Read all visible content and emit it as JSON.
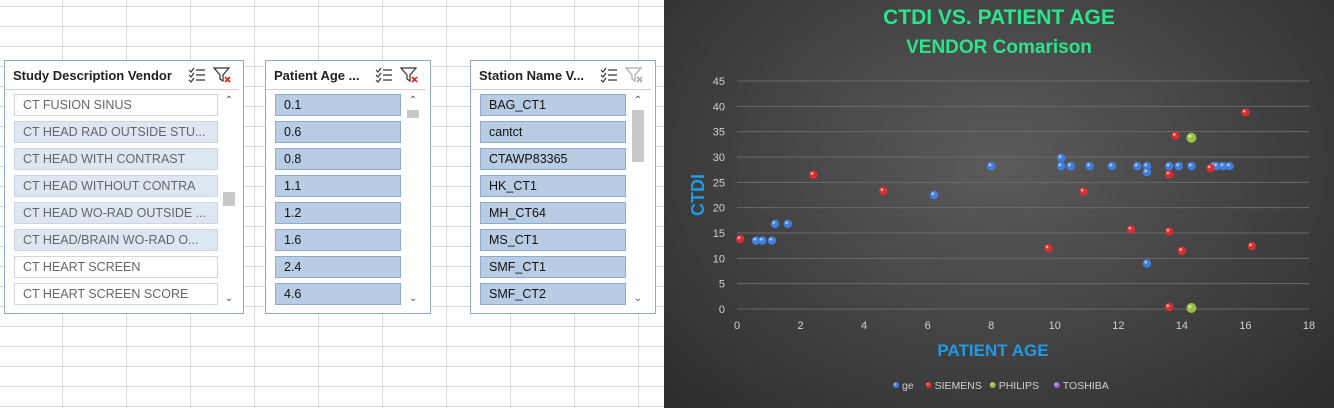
{
  "slicers": [
    {
      "title": "Study Description Vendor",
      "items": [
        {
          "label": "CT FUSION SINUS",
          "state": "normal"
        },
        {
          "label": "CT HEAD RAD OUTSIDE STU...",
          "state": "soft"
        },
        {
          "label": "CT HEAD WITH CONTRAST",
          "state": "soft"
        },
        {
          "label": "CT HEAD WITHOUT CONTRA",
          "state": "soft"
        },
        {
          "label": "CT HEAD WO-RAD OUTSIDE ...",
          "state": "soft"
        },
        {
          "label": "CT HEAD/BRAIN WO-RAD O...",
          "state": "soft"
        },
        {
          "label": "CT HEART SCREEN",
          "state": "normal"
        },
        {
          "label": "CT HEART SCREEN SCORE",
          "state": "normal"
        }
      ],
      "icons": [
        "multi-select-icon",
        "clear-filter-icon"
      ],
      "scroll_position": 0.6
    },
    {
      "title": "Patient Age ...",
      "items": [
        {
          "label": "0.1",
          "state": "sel"
        },
        {
          "label": "0.6",
          "state": "sel"
        },
        {
          "label": "0.8",
          "state": "sel"
        },
        {
          "label": "1.1",
          "state": "sel"
        },
        {
          "label": "1.2",
          "state": "sel"
        },
        {
          "label": "1.6",
          "state": "sel"
        },
        {
          "label": "2.4",
          "state": "sel"
        },
        {
          "label": "4.6",
          "state": "sel"
        }
      ],
      "icons": [
        "multi-select-icon",
        "clear-filter-icon"
      ],
      "scroll_position": 0.0
    },
    {
      "title": "Station Name V...",
      "items": [
        {
          "label": "BAG_CT1",
          "state": "sel"
        },
        {
          "label": "cantct",
          "state": "sel"
        },
        {
          "label": "CTAWP83365",
          "state": "sel"
        },
        {
          "label": "HK_CT1",
          "state": "sel"
        },
        {
          "label": "MH_CT64",
          "state": "sel"
        },
        {
          "label": "MS_CT1",
          "state": "sel"
        },
        {
          "label": "SMF_CT1",
          "state": "sel"
        },
        {
          "label": "SMF_CT2",
          "state": "sel"
        }
      ],
      "icons": [
        "multi-select-icon",
        "clear-filter-icon"
      ],
      "scroll_position": 0.0
    }
  ],
  "chart_data": {
    "type": "scatter",
    "title": "CTDI VS. PATIENT AGE",
    "subtitle": "VENDOR Comarison",
    "xlabel": "PATIENT AGE",
    "ylabel": "CTDI",
    "xlim": [
      0,
      18
    ],
    "ylim": [
      0,
      45
    ],
    "xticks": [
      0,
      2,
      4,
      6,
      8,
      10,
      12,
      14,
      16,
      18
    ],
    "yticks": [
      0,
      5,
      10,
      15,
      20,
      25,
      30,
      35,
      40,
      45
    ],
    "grid": true,
    "legend_position": "bottom",
    "series": [
      {
        "name": "ge",
        "color": "#3f7fe0",
        "points": [
          [
            0.6,
            13.5
          ],
          [
            0.8,
            13.5
          ],
          [
            1.1,
            13.5
          ],
          [
            1.2,
            16.8
          ],
          [
            1.6,
            16.8
          ],
          [
            6.2,
            22.5
          ],
          [
            8.0,
            28.2
          ],
          [
            10.2,
            29.8
          ],
          [
            10.2,
            28.2
          ],
          [
            10.5,
            28.2
          ],
          [
            11.1,
            28.2
          ],
          [
            11.8,
            28.2
          ],
          [
            12.6,
            28.2
          ],
          [
            12.9,
            28.2
          ],
          [
            12.9,
            27.0
          ],
          [
            12.9,
            9.0
          ],
          [
            13.6,
            28.2
          ],
          [
            13.9,
            28.2
          ],
          [
            14.3,
            28.2
          ],
          [
            15.0,
            28.2
          ],
          [
            15.1,
            28.2
          ],
          [
            15.3,
            28.2
          ],
          [
            15.5,
            28.2
          ]
        ]
      },
      {
        "name": "SIEMENS",
        "color": "#d83030",
        "points": [
          [
            0.1,
            13.8
          ],
          [
            2.4,
            26.5
          ],
          [
            4.6,
            23.3
          ],
          [
            9.8,
            12.0
          ],
          [
            10.9,
            23.2
          ],
          [
            12.4,
            15.7
          ],
          [
            13.6,
            26.6
          ],
          [
            13.6,
            15.3
          ],
          [
            13.6,
            0.4
          ],
          [
            13.8,
            34.2
          ],
          [
            14.0,
            11.5
          ],
          [
            14.9,
            27.8
          ],
          [
            16.0,
            38.8
          ],
          [
            16.2,
            12.4
          ]
        ]
      },
      {
        "name": "PHILIPS",
        "color": "#9ac23c",
        "points": [
          [
            14.3,
            33.8
          ],
          [
            14.3,
            0.2
          ]
        ]
      },
      {
        "name": "TOSHIBA",
        "color": "#9b6ad8",
        "points": []
      }
    ]
  }
}
